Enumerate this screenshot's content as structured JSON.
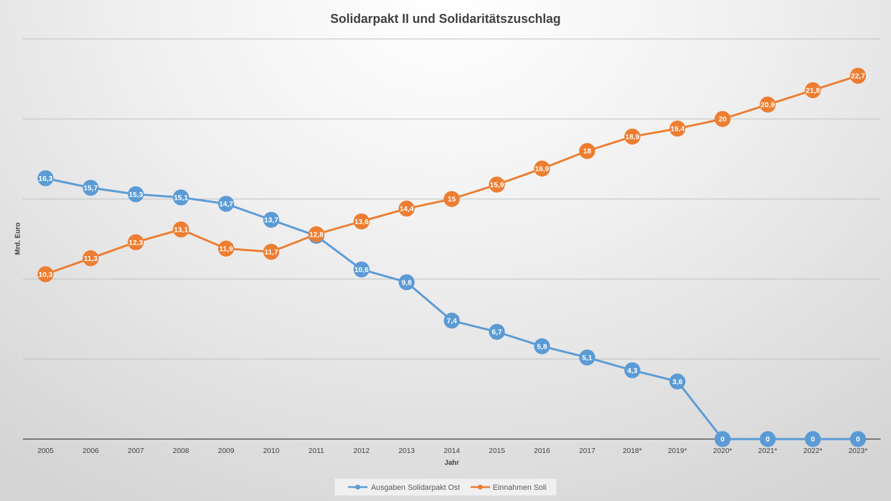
{
  "chart_data": {
    "type": "line",
    "title": "Solidarpakt II und Solidaritätszuschlag",
    "xlabel": "Jahr",
    "ylabel": "Mrd. Euro",
    "categories": [
      "2005",
      "2006",
      "2007",
      "2008",
      "2009",
      "2010",
      "2011",
      "2012",
      "2013",
      "2014",
      "2015",
      "2016",
      "2017",
      "2018*",
      "2019*",
      "2020*",
      "2021*",
      "2022*",
      "2023*"
    ],
    "ylim": [
      0,
      25
    ],
    "y_major_unit": 5,
    "grid": true,
    "legend": "bottom",
    "series": [
      {
        "name": "Ausgaben Solidarpakt Ost",
        "color": "#5b9bd5",
        "values": [
          16.3,
          15.7,
          15.3,
          15.1,
          14.7,
          13.7,
          12.7,
          10.6,
          9.8,
          7.4,
          6.7,
          5.8,
          5.1,
          4.3,
          3.6,
          0,
          0,
          0,
          0
        ],
        "labels": [
          "16,3",
          "15,7",
          "15,3",
          "15,1",
          "14,7",
          "13,7",
          "12,7",
          "10,6",
          "9,8",
          "7,4",
          "6,7",
          "5,8",
          "5,1",
          "4,3",
          "3,6",
          "0",
          "0",
          "0",
          "0"
        ]
      },
      {
        "name": "Einnahmen Soli",
        "color": "#ed7d31",
        "values": [
          10.3,
          11.3,
          12.3,
          13.1,
          11.9,
          11.7,
          12.8,
          13.6,
          14.4,
          15,
          15.9,
          16.9,
          18,
          18.9,
          19.4,
          20,
          20.9,
          21.8,
          22.7
        ],
        "labels": [
          "10,3",
          "11,3",
          "12,3",
          "13,1",
          "11,9",
          "11,7",
          "12,8",
          "13,6",
          "14,4",
          "15",
          "15,9",
          "16,9",
          "18",
          "18,9",
          "19,4",
          "20",
          "20,9",
          "21,8",
          "22,7"
        ]
      }
    ]
  }
}
